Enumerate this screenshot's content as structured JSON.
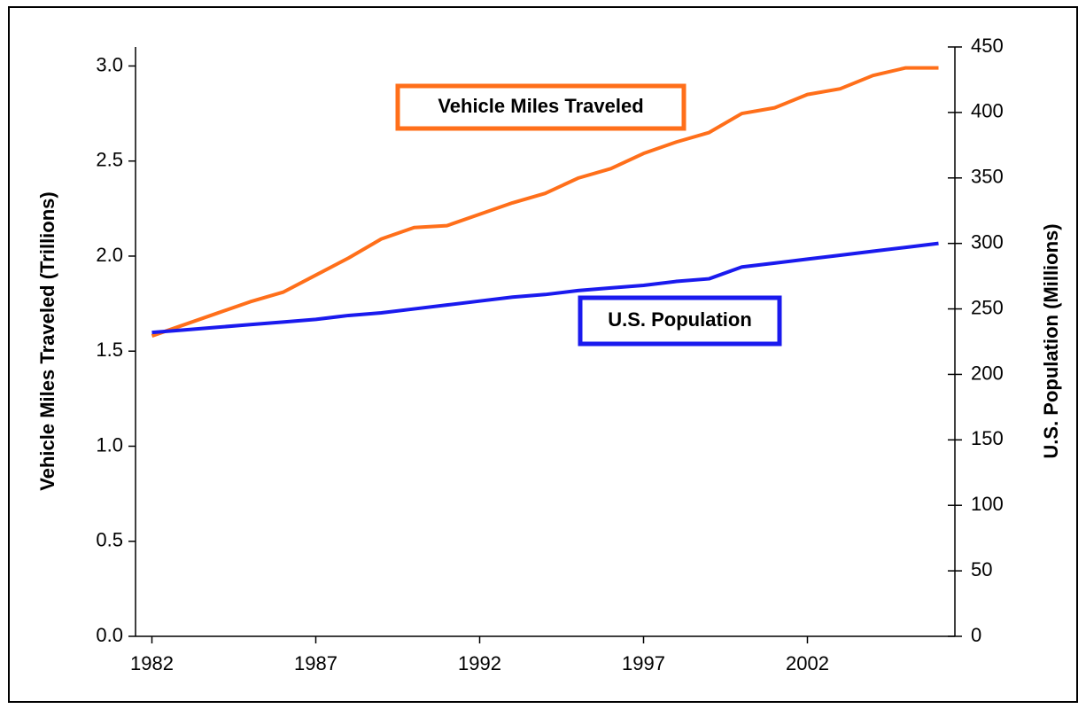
{
  "chart_data": {
    "type": "line",
    "x": [
      1982,
      1983,
      1984,
      1985,
      1986,
      1987,
      1988,
      1989,
      1990,
      1991,
      1992,
      1993,
      1994,
      1995,
      1996,
      1997,
      1998,
      1999,
      2000,
      2001,
      2002,
      2003,
      2004,
      2005,
      2006
    ],
    "xlim": [
      1981.5,
      2006.5
    ],
    "xticks": [
      1982,
      1987,
      1992,
      1997,
      2002
    ],
    "ylabel": "Vehicle Miles Traveled (Trillions)",
    "y2label": "U.S. Population (Millions)",
    "ylim": [
      0,
      3.1
    ],
    "yticks": [
      {
        "value": 0,
        "label": "0.0"
      },
      0.5,
      {
        "value": 1,
        "label": "1.0"
      },
      1.5,
      {
        "value": 2,
        "label": "2.0"
      },
      2.5,
      {
        "value": 3,
        "label": "3.0"
      }
    ],
    "y2lim": [
      0,
      450
    ],
    "y2ticks": [
      0,
      50,
      100,
      150,
      200,
      250,
      300,
      350,
      400,
      450
    ],
    "series": [
      {
        "name": "Vehicle Miles Traveled",
        "color": "#ff6f1a",
        "values": [
          1.58,
          1.64,
          1.7,
          1.76,
          1.81,
          1.9,
          1.99,
          2.09,
          2.15,
          2.16,
          2.22,
          2.28,
          2.33,
          2.41,
          2.46,
          2.54,
          2.6,
          2.65,
          2.75,
          2.78,
          2.85,
          2.88,
          2.95,
          2.99,
          2.99
        ]
      },
      {
        "name": "U.S. Population",
        "color": "#1a1aee",
        "axis": "y2",
        "values": [
          232,
          234,
          236,
          238,
          240,
          242,
          245,
          247,
          250,
          253,
          256,
          259,
          261,
          264,
          266,
          268,
          271,
          273,
          282,
          285,
          288,
          291,
          294,
          297,
          300
        ]
      }
    ]
  }
}
